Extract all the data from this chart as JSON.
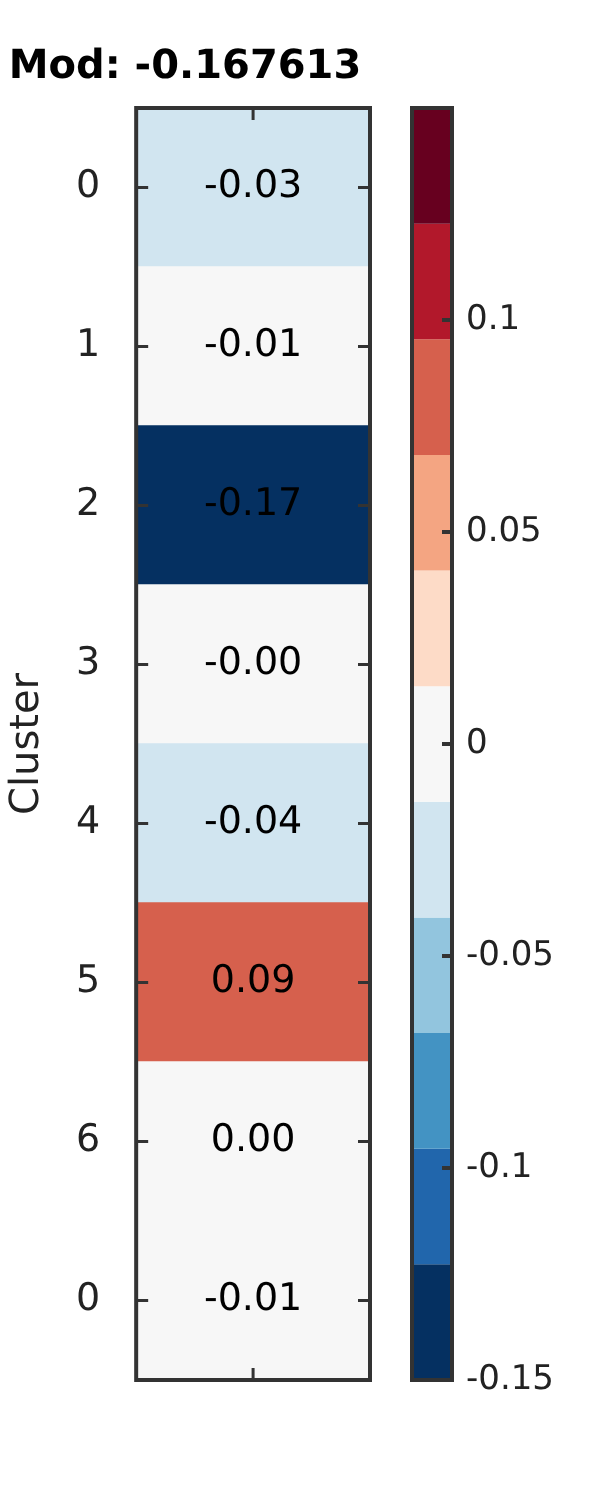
{
  "chart_data": {
    "type": "heatmap",
    "title": "Mod: -0.167613",
    "ylabel": "Cluster",
    "categories": [
      null
    ],
    "y_categories": [
      "0",
      "1",
      "2",
      "3",
      "4",
      "5",
      "6",
      "0"
    ],
    "cells": [
      [
        -0.03
      ],
      [
        -0.01
      ],
      [
        -0.17
      ],
      [
        -0.0
      ],
      [
        -0.04
      ],
      [
        0.09
      ],
      [
        0.0
      ],
      [
        -0.01
      ]
    ],
    "cell_labels": [
      [
        "-0.03"
      ],
      [
        "-0.01"
      ],
      [
        "-0.17"
      ],
      [
        "-0.00"
      ],
      [
        "-0.04"
      ],
      [
        "0.09"
      ],
      [
        "0.00"
      ],
      [
        "-0.01"
      ]
    ],
    "colors": [
      "#053061",
      "#2166ac",
      "#4393c3",
      "#92c5de",
      "#d1e5f0",
      "#f7f7f7",
      "#fddbc7",
      "#f4a582",
      "#d6604d",
      "#b2182b",
      "#67001f"
    ],
    "clim": [
      -0.15,
      0.15
    ],
    "cticks": [
      -0.15,
      -0.1,
      -0.05,
      0,
      0.05,
      0.1
    ]
  }
}
